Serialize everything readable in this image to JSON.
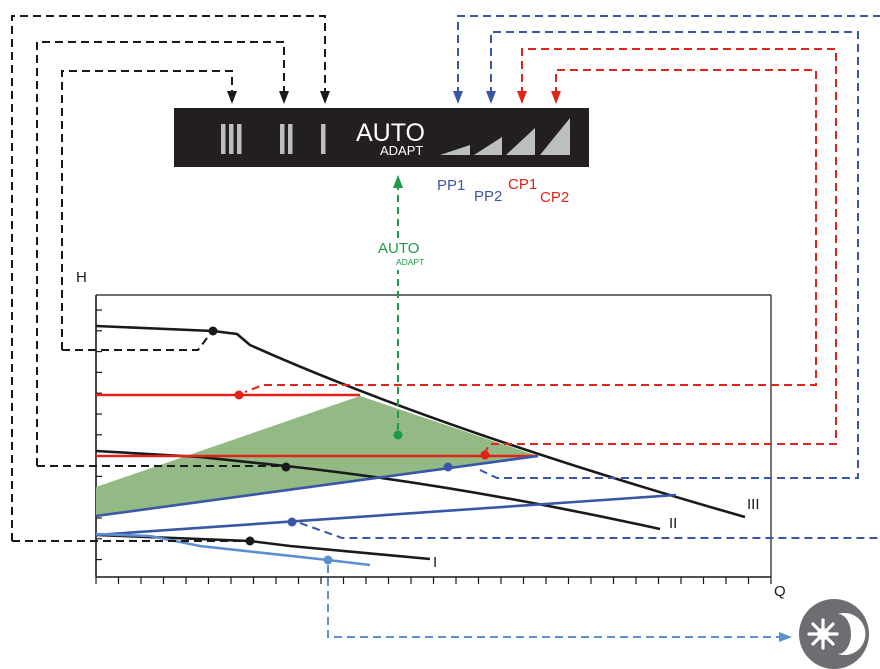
{
  "control_panel": {
    "speed_labels": [
      "III",
      "II",
      "I"
    ],
    "auto_label": "AUTO",
    "adapt_label": "ADAPT"
  },
  "mode_labels": {
    "pp1": "PP1",
    "pp2": "PP2",
    "cp1": "CP1",
    "cp2": "CP2"
  },
  "autoadapt_label": {
    "auto": "AUTO",
    "adapt": "ADAPT"
  },
  "axes": {
    "y_label": "H",
    "x_label": "Q"
  },
  "curve_labels": {
    "speed_3": "III",
    "speed_2": "II",
    "speed_1": "I"
  },
  "icons": {
    "night_mode": "night-mode-icon"
  },
  "colors": {
    "black": "#1a1a1a",
    "proportional_pressure": "#3a57a7",
    "constant_pressure": "#e2231a",
    "autoadapt": "#1c9a48",
    "autoadapt_area": "#93b985",
    "night_mode": "#5b8fd0",
    "panel": "#231f20",
    "panel_symbols": "#bcbec0"
  }
}
